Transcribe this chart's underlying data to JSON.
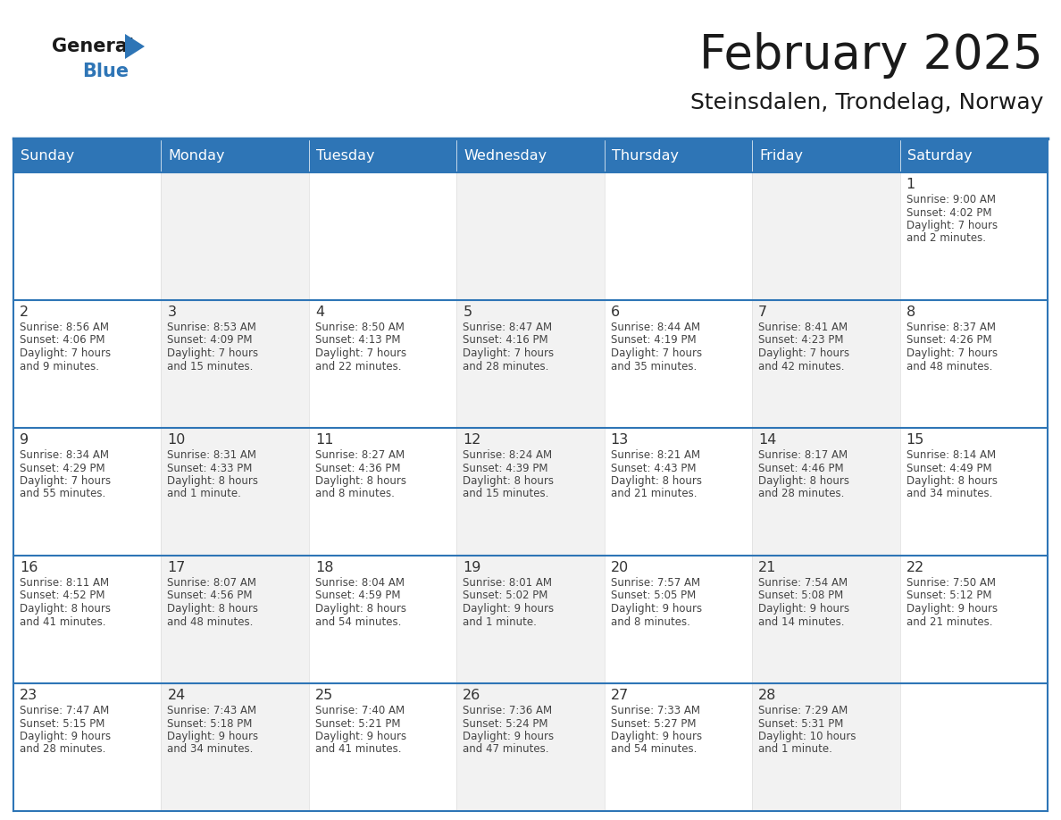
{
  "title": "February 2025",
  "subtitle": "Steinsdalen, Trondelag, Norway",
  "days_of_week": [
    "Sunday",
    "Monday",
    "Tuesday",
    "Wednesday",
    "Thursday",
    "Friday",
    "Saturday"
  ],
  "header_bg": "#2E75B6",
  "header_text": "#FFFFFF",
  "cell_bg_even": "#FFFFFF",
  "cell_bg_odd": "#F2F2F2",
  "border_color": "#2E75B6",
  "cell_border_color": "#DDDDDD",
  "day_number_color": "#333333",
  "info_color": "#444444",
  "title_color": "#1a1a1a",
  "subtitle_color": "#1a1a1a",
  "logo_general_color": "#1a1a1a",
  "logo_blue_color": "#2E75B6",
  "weeks": [
    [
      {
        "day": null,
        "info": ""
      },
      {
        "day": null,
        "info": ""
      },
      {
        "day": null,
        "info": ""
      },
      {
        "day": null,
        "info": ""
      },
      {
        "day": null,
        "info": ""
      },
      {
        "day": null,
        "info": ""
      },
      {
        "day": 1,
        "info": "Sunrise: 9:00 AM\nSunset: 4:02 PM\nDaylight: 7 hours\nand 2 minutes."
      }
    ],
    [
      {
        "day": 2,
        "info": "Sunrise: 8:56 AM\nSunset: 4:06 PM\nDaylight: 7 hours\nand 9 minutes."
      },
      {
        "day": 3,
        "info": "Sunrise: 8:53 AM\nSunset: 4:09 PM\nDaylight: 7 hours\nand 15 minutes."
      },
      {
        "day": 4,
        "info": "Sunrise: 8:50 AM\nSunset: 4:13 PM\nDaylight: 7 hours\nand 22 minutes."
      },
      {
        "day": 5,
        "info": "Sunrise: 8:47 AM\nSunset: 4:16 PM\nDaylight: 7 hours\nand 28 minutes."
      },
      {
        "day": 6,
        "info": "Sunrise: 8:44 AM\nSunset: 4:19 PM\nDaylight: 7 hours\nand 35 minutes."
      },
      {
        "day": 7,
        "info": "Sunrise: 8:41 AM\nSunset: 4:23 PM\nDaylight: 7 hours\nand 42 minutes."
      },
      {
        "day": 8,
        "info": "Sunrise: 8:37 AM\nSunset: 4:26 PM\nDaylight: 7 hours\nand 48 minutes."
      }
    ],
    [
      {
        "day": 9,
        "info": "Sunrise: 8:34 AM\nSunset: 4:29 PM\nDaylight: 7 hours\nand 55 minutes."
      },
      {
        "day": 10,
        "info": "Sunrise: 8:31 AM\nSunset: 4:33 PM\nDaylight: 8 hours\nand 1 minute."
      },
      {
        "day": 11,
        "info": "Sunrise: 8:27 AM\nSunset: 4:36 PM\nDaylight: 8 hours\nand 8 minutes."
      },
      {
        "day": 12,
        "info": "Sunrise: 8:24 AM\nSunset: 4:39 PM\nDaylight: 8 hours\nand 15 minutes."
      },
      {
        "day": 13,
        "info": "Sunrise: 8:21 AM\nSunset: 4:43 PM\nDaylight: 8 hours\nand 21 minutes."
      },
      {
        "day": 14,
        "info": "Sunrise: 8:17 AM\nSunset: 4:46 PM\nDaylight: 8 hours\nand 28 minutes."
      },
      {
        "day": 15,
        "info": "Sunrise: 8:14 AM\nSunset: 4:49 PM\nDaylight: 8 hours\nand 34 minutes."
      }
    ],
    [
      {
        "day": 16,
        "info": "Sunrise: 8:11 AM\nSunset: 4:52 PM\nDaylight: 8 hours\nand 41 minutes."
      },
      {
        "day": 17,
        "info": "Sunrise: 8:07 AM\nSunset: 4:56 PM\nDaylight: 8 hours\nand 48 minutes."
      },
      {
        "day": 18,
        "info": "Sunrise: 8:04 AM\nSunset: 4:59 PM\nDaylight: 8 hours\nand 54 minutes."
      },
      {
        "day": 19,
        "info": "Sunrise: 8:01 AM\nSunset: 5:02 PM\nDaylight: 9 hours\nand 1 minute."
      },
      {
        "day": 20,
        "info": "Sunrise: 7:57 AM\nSunset: 5:05 PM\nDaylight: 9 hours\nand 8 minutes."
      },
      {
        "day": 21,
        "info": "Sunrise: 7:54 AM\nSunset: 5:08 PM\nDaylight: 9 hours\nand 14 minutes."
      },
      {
        "day": 22,
        "info": "Sunrise: 7:50 AM\nSunset: 5:12 PM\nDaylight: 9 hours\nand 21 minutes."
      }
    ],
    [
      {
        "day": 23,
        "info": "Sunrise: 7:47 AM\nSunset: 5:15 PM\nDaylight: 9 hours\nand 28 minutes."
      },
      {
        "day": 24,
        "info": "Sunrise: 7:43 AM\nSunset: 5:18 PM\nDaylight: 9 hours\nand 34 minutes."
      },
      {
        "day": 25,
        "info": "Sunrise: 7:40 AM\nSunset: 5:21 PM\nDaylight: 9 hours\nand 41 minutes."
      },
      {
        "day": 26,
        "info": "Sunrise: 7:36 AM\nSunset: 5:24 PM\nDaylight: 9 hours\nand 47 minutes."
      },
      {
        "day": 27,
        "info": "Sunrise: 7:33 AM\nSunset: 5:27 PM\nDaylight: 9 hours\nand 54 minutes."
      },
      {
        "day": 28,
        "info": "Sunrise: 7:29 AM\nSunset: 5:31 PM\nDaylight: 10 hours\nand 1 minute."
      },
      {
        "day": null,
        "info": ""
      }
    ]
  ]
}
